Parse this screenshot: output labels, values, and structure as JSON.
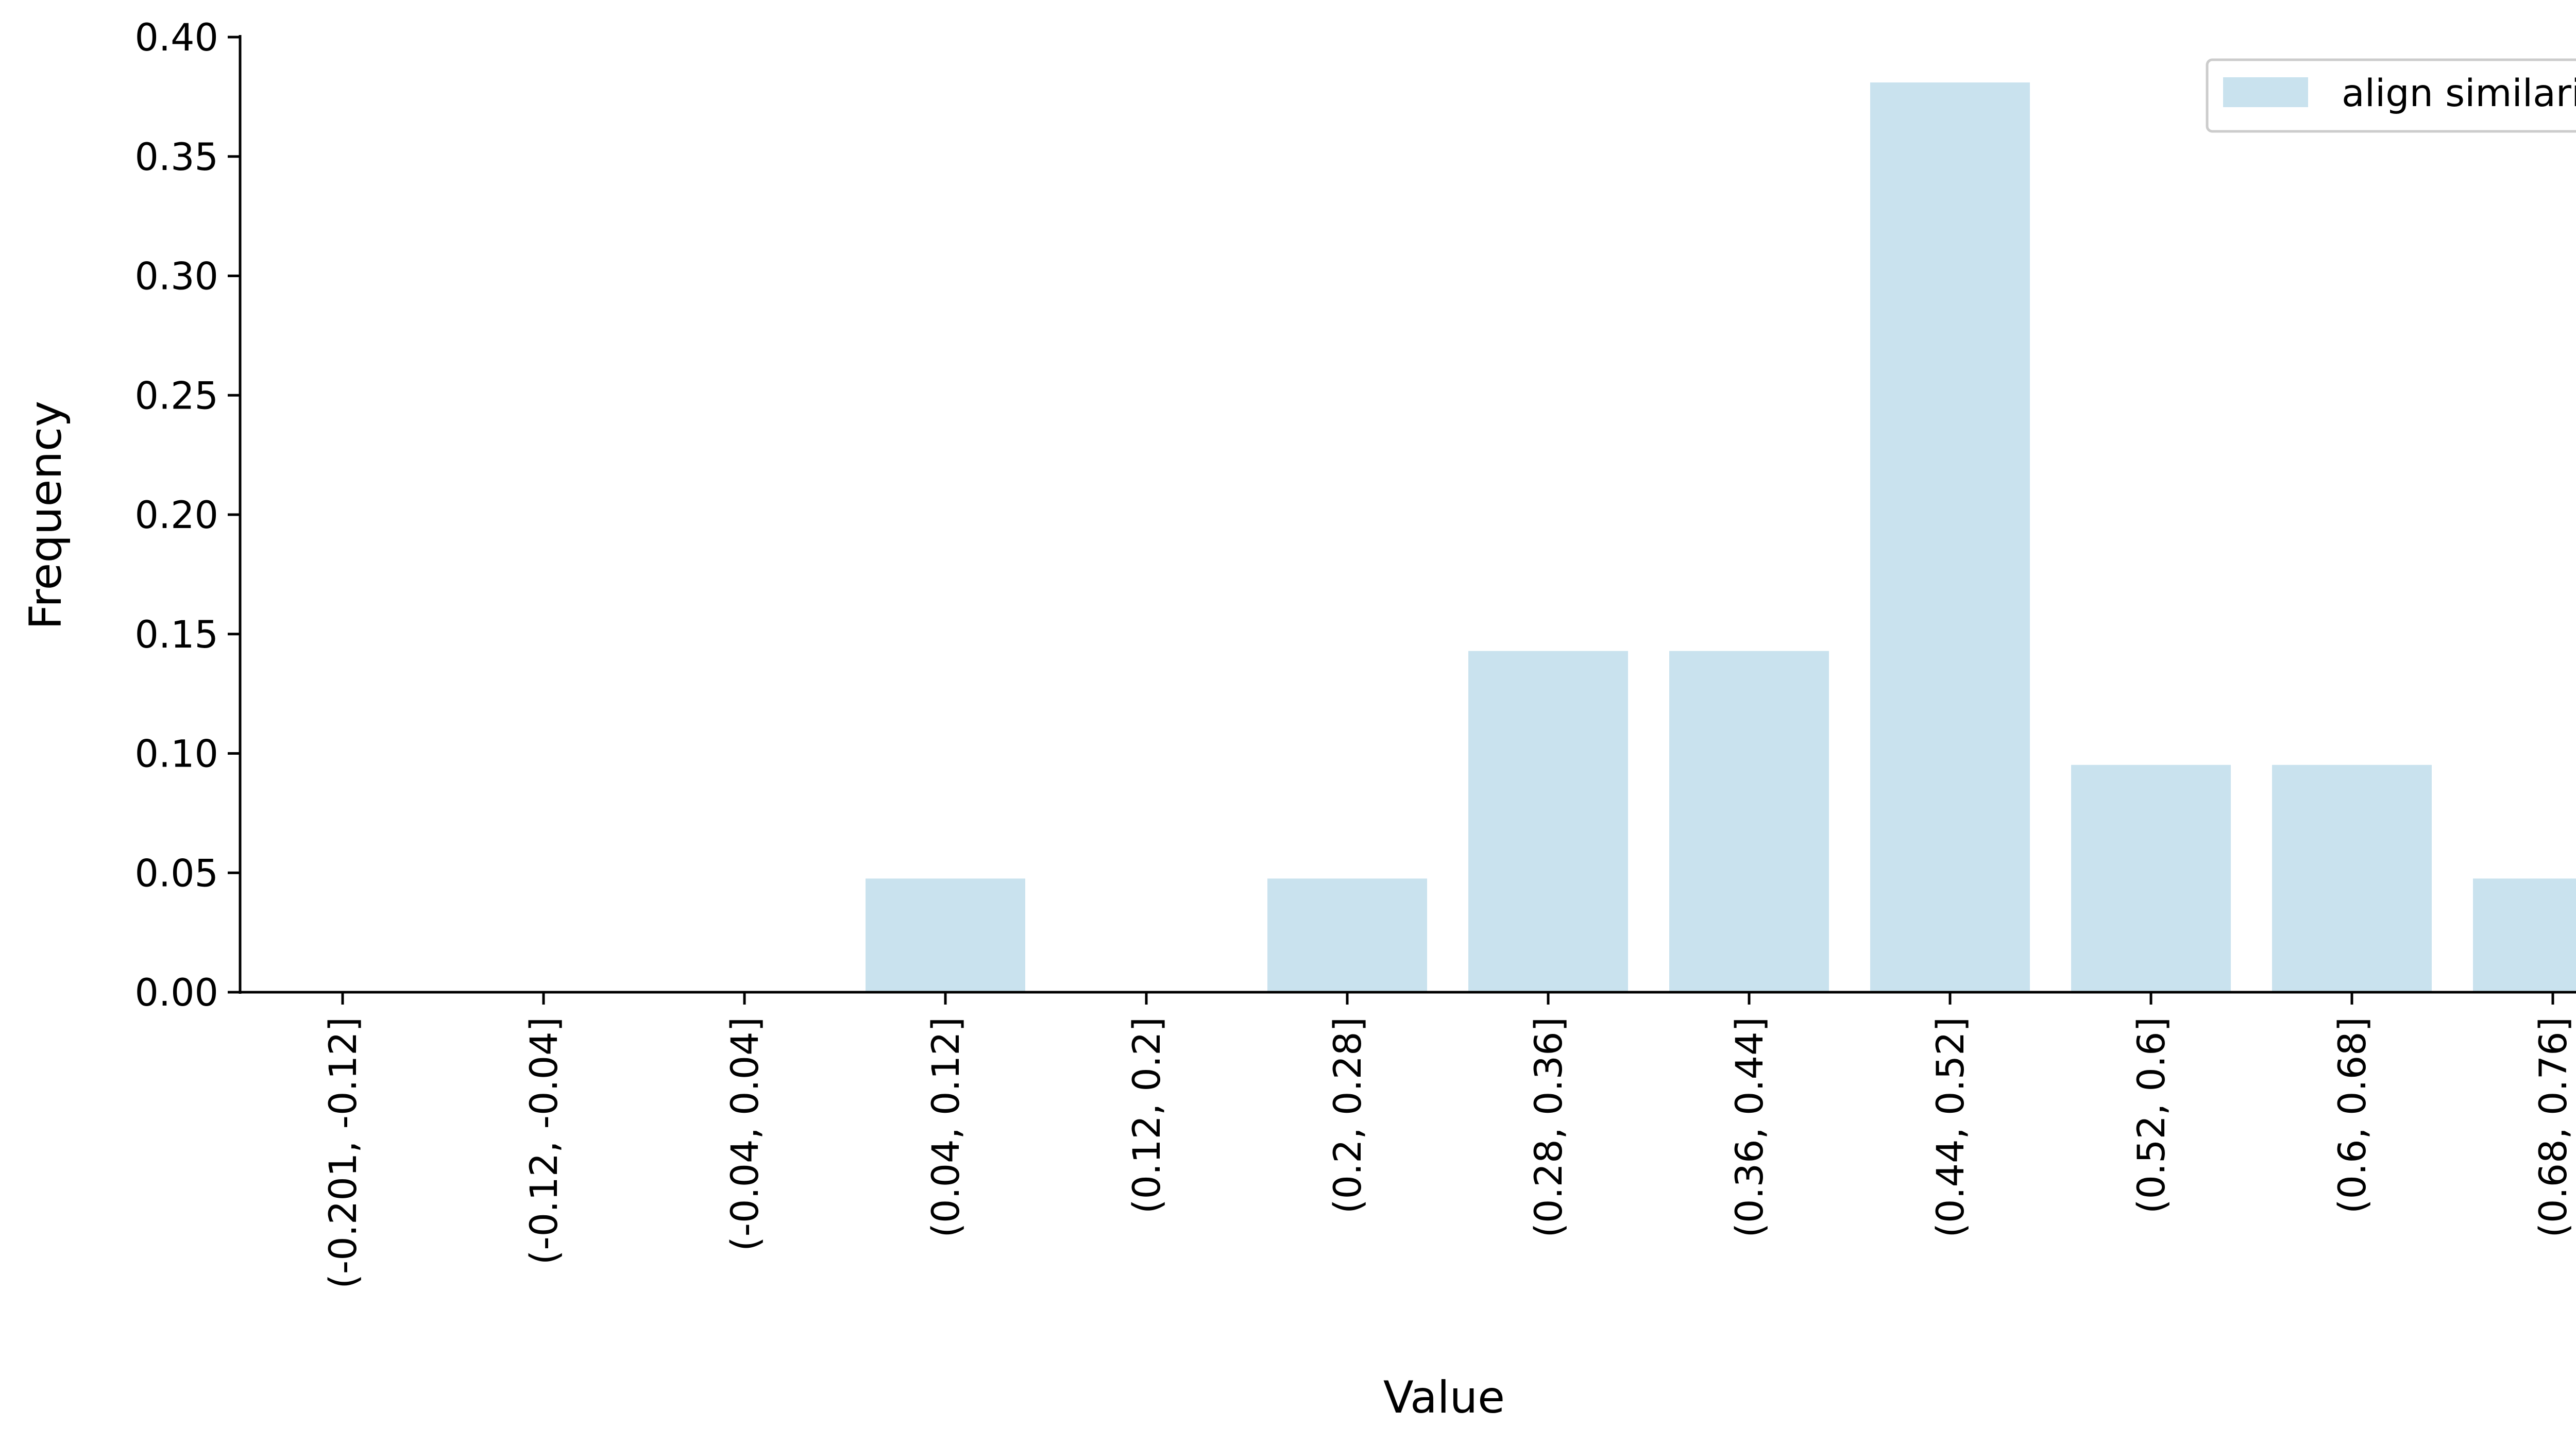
{
  "colors": {
    "bar": "#c9e2ee",
    "axis": "#000000",
    "legend_border": "#cccccc"
  },
  "chart_data": {
    "type": "bar",
    "title": "",
    "xlabel": "Value",
    "ylabel": "Frequency",
    "ylim": [
      0,
      0.4
    ],
    "yticks": [
      "0.00",
      "0.05",
      "0.10",
      "0.15",
      "0.20",
      "0.25",
      "0.30",
      "0.35",
      "0.40"
    ],
    "grid": false,
    "legend_position": "top-right",
    "categories": [
      "(-0.201, -0.12]",
      "(-0.12, -0.04]",
      "(-0.04, 0.04]",
      "(0.04, 0.12]",
      "(0.12, 0.2]",
      "(0.2, 0.28]",
      "(0.28, 0.36]",
      "(0.36, 0.44]",
      "(0.44, 0.52]",
      "(0.52, 0.6]",
      "(0.6, 0.68]",
      "(0.68, 0.76]"
    ],
    "series": [
      {
        "name": "align similarity",
        "values": [
          0,
          0,
          0,
          0.0476,
          0,
          0.0476,
          0.1429,
          0.1429,
          0.381,
          0.0952,
          0.0952,
          0.0476
        ]
      }
    ]
  }
}
